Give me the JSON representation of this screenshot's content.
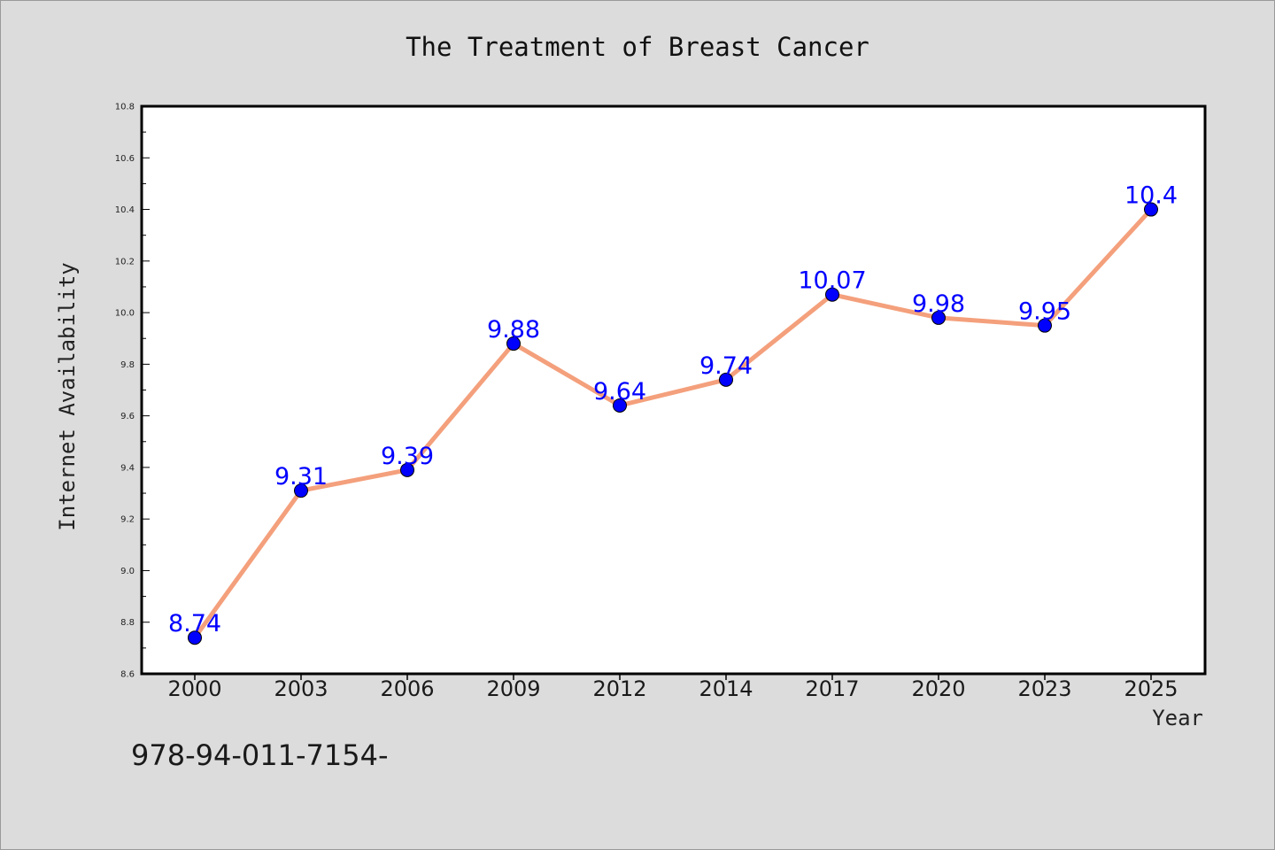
{
  "chart_data": {
    "type": "line",
    "title": "The Treatment of Breast Cancer",
    "xlabel": "Year",
    "ylabel": "Internet Availability",
    "categories": [
      "2000",
      "2003",
      "2006",
      "2009",
      "2012",
      "2014",
      "2017",
      "2020",
      "2023",
      "2025"
    ],
    "series": [
      {
        "values": [
          8.74,
          9.31,
          9.39,
          9.88,
          9.64,
          9.74,
          10.07,
          9.98,
          9.95,
          10.4
        ],
        "data_labels": [
          "8.74",
          "9.31",
          "9.39",
          "9.88",
          "9.64",
          "9.74",
          "10.07",
          "9.98",
          "9.95",
          "10.4"
        ]
      }
    ],
    "ylim": [
      8.6,
      10.8
    ],
    "yticks": [
      "8.6",
      "8.8",
      "9.0",
      "9.2",
      "9.4",
      "9.6",
      "9.8",
      "10.0",
      "10.2",
      "10.4",
      "10.6",
      "10.8"
    ],
    "grid": false,
    "legend": "none",
    "colors": {
      "line": "#f4a07c",
      "marker": "#0000ff",
      "marker_edge": "#000000",
      "data_label": "#0000ff",
      "plot_background": "#ffffff",
      "figure_background": "#dcdcdc"
    }
  },
  "footer_text": "978-94-011-7154-"
}
